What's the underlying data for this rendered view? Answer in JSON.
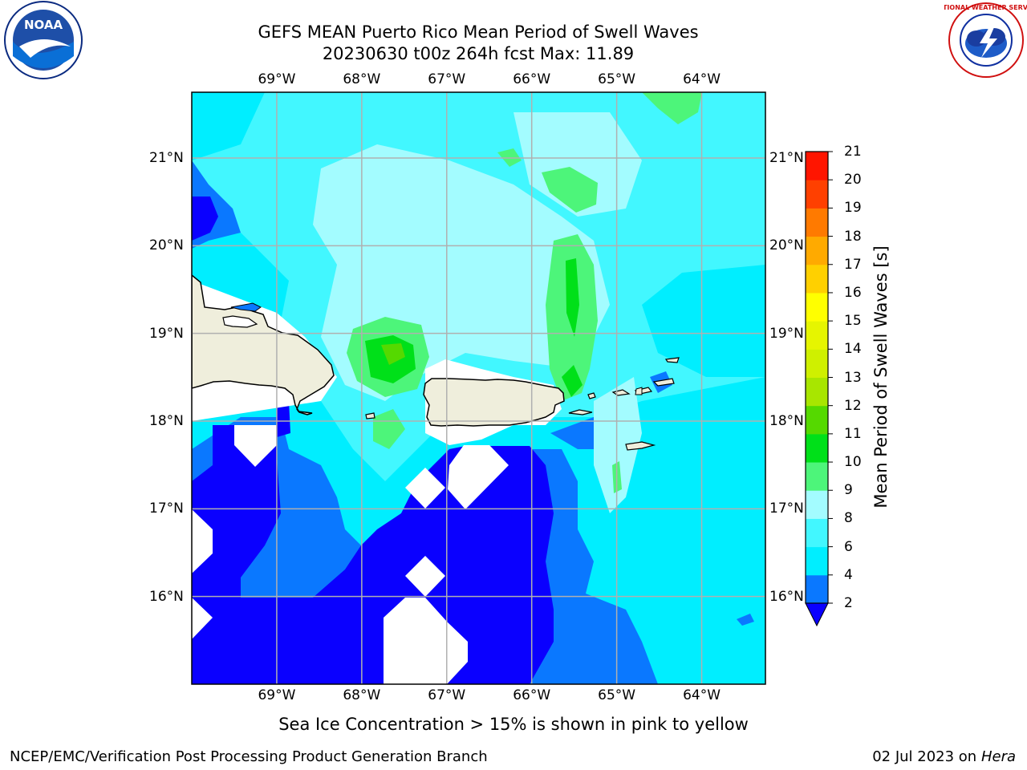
{
  "title_line1": "GEFS MEAN Puerto Rico Mean Period of Swell Waves",
  "title_line2": "20230630 t00z 264h fcst   Max: 11.89",
  "lon_labels": [
    "69°W",
    "68°W",
    "67°W",
    "66°W",
    "65°W",
    "64°W"
  ],
  "lat_labels": [
    "21°N",
    "20°N",
    "19°N",
    "18°N",
    "17°N",
    "16°N"
  ],
  "colorbar": {
    "label": "Mean Period of Swell Waves [s]",
    "ticks": [
      "2",
      "4",
      "6",
      "8",
      "9",
      "10",
      "11",
      "12",
      "13",
      "14",
      "15",
      "16",
      "17",
      "18",
      "19",
      "20",
      "21"
    ],
    "colors": [
      "#0a00ff",
      "#0a78ff",
      "#00eeff",
      "#42f7ff",
      "#a3fcff",
      "#4df57a",
      "#00e019",
      "#55d900",
      "#a8e600",
      "#cff000",
      "#e6f500",
      "#ffff00",
      "#ffd000",
      "#ffaa00",
      "#ff7a00",
      "#ff4000",
      "#ff1500",
      "#ff0000"
    ]
  },
  "map": {
    "lon_range": [
      -70,
      -63.25
    ],
    "lat_range": [
      15,
      21.75
    ],
    "land_color": "#efeedc",
    "no_data_color": "#ffffff",
    "grid": true
  },
  "sea_ice_note": "Sea Ice Concentration > 15% is shown in pink to yellow",
  "footer_left": "NCEP/EMC/Verification Post Processing Product Generation Branch",
  "footer_date": "02 Jul 2023 on ",
  "footer_host": "Hera",
  "logos": {
    "noaa": {
      "icon": "noaa-logo",
      "text": "NOAA"
    },
    "nws": {
      "icon": "nws-logo",
      "text": "NATIONAL WEATHER SERVICE"
    }
  }
}
